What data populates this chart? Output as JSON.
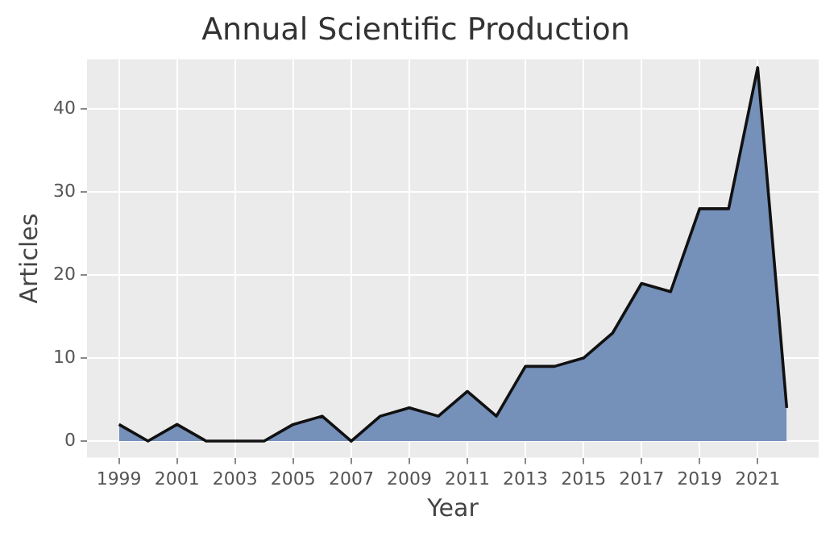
{
  "chart_data": {
    "type": "area",
    "title": "Annual Scientific Production",
    "xlabel": "Year",
    "ylabel": "Articles",
    "x": [
      1999,
      2000,
      2001,
      2002,
      2003,
      2004,
      2005,
      2006,
      2007,
      2008,
      2009,
      2010,
      2011,
      2012,
      2013,
      2014,
      2015,
      2016,
      2017,
      2018,
      2019,
      2020,
      2021,
      2022
    ],
    "series": [
      {
        "color": "#7590b9",
        "values": [
          2,
          0,
          2,
          0,
          0,
          0,
          2,
          3,
          0,
          3,
          4,
          3,
          6,
          3,
          9,
          9,
          10,
          13,
          19,
          18,
          28,
          28,
          45,
          4
        ]
      }
    ],
    "xlim": [
      1997.9,
      2023.1
    ],
    "xticks": [
      1999,
      2001,
      2003,
      2005,
      2007,
      2009,
      2011,
      2013,
      2015,
      2017,
      2019,
      2021
    ],
    "ylim": [
      -2,
      46
    ],
    "yticks": [
      0,
      10,
      20,
      30,
      40
    ],
    "grid": true,
    "legend": false
  }
}
